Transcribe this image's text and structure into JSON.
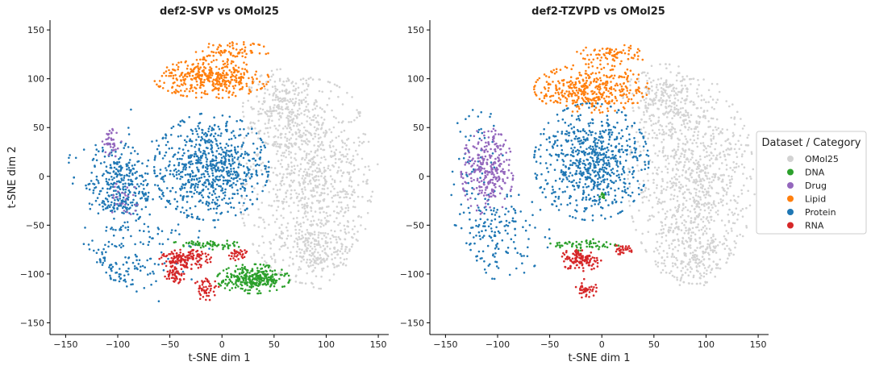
{
  "chart_data": [
    {
      "type": "scatter",
      "title": "def2-SVP vs OMol25",
      "xlabel": "t-SNE dim 1",
      "ylabel": "t-SNE dim 2",
      "xlim": [
        -165,
        160
      ],
      "ylim": [
        -162,
        160
      ],
      "xticks": [
        -150,
        -100,
        -50,
        0,
        50,
        100,
        150
      ],
      "yticks": [
        -150,
        -100,
        -50,
        0,
        50,
        100,
        150
      ],
      "xtick_labels": [
        "−150",
        "−100",
        "−50",
        "0",
        "50",
        "100",
        "150"
      ],
      "ytick_labels": [
        "−150",
        "−100",
        "−50",
        "0",
        "50",
        "100",
        "150"
      ],
      "grid": false,
      "series": [
        {
          "name": "OMol25",
          "color": "#d3d3d3",
          "clusters": [
            {
              "cx": 85,
              "cy": -5,
              "rx": 70,
              "ry": 105,
              "n": 900
            },
            {
              "cx": 60,
              "cy": 70,
              "rx": 40,
              "ry": 40,
              "n": 250
            },
            {
              "cx": 95,
              "cy": -80,
              "rx": 45,
              "ry": 35,
              "n": 200
            }
          ]
        },
        {
          "name": "Protein",
          "color": "#1f77b4",
          "clusters": [
            {
              "cx": -10,
              "cy": 10,
              "rx": 55,
              "ry": 55,
              "n": 700
            },
            {
              "cx": -100,
              "cy": -10,
              "rx": 30,
              "ry": 45,
              "n": 300
            },
            {
              "cx": -100,
              "cy": -90,
              "rx": 45,
              "ry": 30,
              "n": 120
            },
            {
              "cx": -150,
              "cy": 20,
              "rx": 10,
              "ry": 10,
              "n": 20
            },
            {
              "cx": -75,
              "cy": -30,
              "rx": 70,
              "ry": 100,
              "n": 160
            }
          ]
        },
        {
          "name": "Lipid",
          "color": "#ff7f0e",
          "clusters": [
            {
              "cx": -10,
              "cy": 100,
              "rx": 55,
              "ry": 20,
              "n": 400
            },
            {
              "cx": 10,
              "cy": 128,
              "rx": 35,
              "ry": 10,
              "n": 80
            }
          ]
        },
        {
          "name": "DNA",
          "color": "#2ca02c",
          "clusters": [
            {
              "cx": 30,
              "cy": -105,
              "rx": 35,
              "ry": 15,
              "n": 300
            },
            {
              "cx": -15,
              "cy": -70,
              "rx": 35,
              "ry": 5,
              "n": 60
            }
          ]
        },
        {
          "name": "RNA",
          "color": "#d62728",
          "clusters": [
            {
              "cx": -35,
              "cy": -85,
              "rx": 25,
              "ry": 10,
              "n": 150
            },
            {
              "cx": -45,
              "cy": -100,
              "rx": 10,
              "ry": 10,
              "n": 50
            },
            {
              "cx": -15,
              "cy": -115,
              "rx": 12,
              "ry": 12,
              "n": 50
            },
            {
              "cx": 15,
              "cy": -80,
              "rx": 10,
              "ry": 6,
              "n": 30
            }
          ]
        },
        {
          "name": "Drug",
          "color": "#9467bd",
          "clusters": [
            {
              "cx": -105,
              "cy": 35,
              "rx": 10,
              "ry": 15,
              "n": 40
            },
            {
              "cx": -95,
              "cy": -20,
              "rx": 15,
              "ry": 25,
              "n": 25
            }
          ]
        }
      ]
    },
    {
      "type": "scatter",
      "title": "def2-TZVPD vs OMol25",
      "xlabel": "t-SNE dim 1",
      "ylabel": "",
      "xlim": [
        -165,
        160
      ],
      "ylim": [
        -162,
        160
      ],
      "xticks": [
        -150,
        -100,
        -50,
        0,
        50,
        100,
        150
      ],
      "yticks": [
        -150,
        -100,
        -50,
        0,
        50,
        100,
        150
      ],
      "xtick_labels": [
        "−150",
        "−100",
        "−50",
        "0",
        "50",
        "100",
        "150"
      ],
      "ytick_labels": [
        "−150",
        "−100",
        "−50",
        "0",
        "50",
        "100",
        "150"
      ],
      "grid": false,
      "series": [
        {
          "name": "OMol25",
          "color": "#d3d3d3",
          "clusters": [
            {
              "cx": 90,
              "cy": -5,
              "rx": 65,
              "ry": 105,
              "n": 900
            },
            {
              "cx": 60,
              "cy": 75,
              "rx": 40,
              "ry": 40,
              "n": 250
            },
            {
              "cx": 95,
              "cy": -80,
              "rx": 45,
              "ry": 35,
              "n": 200
            }
          ]
        },
        {
          "name": "Protein",
          "color": "#1f77b4",
          "clusters": [
            {
              "cx": -10,
              "cy": 15,
              "rx": 55,
              "ry": 60,
              "n": 700
            },
            {
              "cx": -100,
              "cy": -60,
              "rx": 50,
              "ry": 45,
              "n": 150
            },
            {
              "cx": -125,
              "cy": 0,
              "rx": 35,
              "ry": 80,
              "n": 80
            }
          ]
        },
        {
          "name": "Lipid",
          "color": "#ff7f0e",
          "clusters": [
            {
              "cx": -10,
              "cy": 90,
              "rx": 55,
              "ry": 25,
              "n": 400
            },
            {
              "cx": 10,
              "cy": 125,
              "rx": 35,
              "ry": 10,
              "n": 80
            }
          ]
        },
        {
          "name": "Drug",
          "color": "#9467bd",
          "clusters": [
            {
              "cx": -110,
              "cy": 5,
              "rx": 25,
              "ry": 45,
              "n": 280
            }
          ]
        },
        {
          "name": "DNA",
          "color": "#2ca02c",
          "clusters": [
            {
              "cx": -15,
              "cy": -70,
              "rx": 35,
              "ry": 6,
              "n": 60
            },
            {
              "cx": 0,
              "cy": -20,
              "rx": 5,
              "ry": 5,
              "n": 10
            }
          ]
        },
        {
          "name": "RNA",
          "color": "#d62728",
          "clusters": [
            {
              "cx": -20,
              "cy": -85,
              "rx": 20,
              "ry": 12,
              "n": 130
            },
            {
              "cx": -15,
              "cy": -115,
              "rx": 10,
              "ry": 10,
              "n": 40
            },
            {
              "cx": 20,
              "cy": -75,
              "rx": 12,
              "ry": 5,
              "n": 30
            }
          ]
        }
      ]
    }
  ],
  "legend": {
    "title": "Dataset / Category",
    "placement": "right",
    "entries": [
      {
        "label": "OMol25",
        "color": "#d3d3d3"
      },
      {
        "label": "DNA",
        "color": "#2ca02c"
      },
      {
        "label": "Drug",
        "color": "#9467bd"
      },
      {
        "label": "Lipid",
        "color": "#ff7f0e"
      },
      {
        "label": "Protein",
        "color": "#1f77b4"
      },
      {
        "label": "RNA",
        "color": "#d62728"
      }
    ]
  }
}
